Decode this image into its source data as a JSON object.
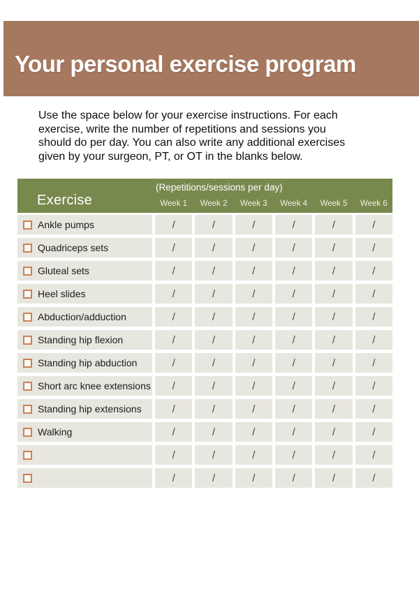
{
  "title": "Your personal exercise program",
  "instructions": {
    "lines": [
      "Use the space below for your exercise instructions. For each",
      "exercise, write the number of repetitions and sessions you",
      "should do per day. You can also write any additional exercises",
      "given by your surgeon, PT, or OT in the blanks below."
    ]
  },
  "table": {
    "exercise_header": "Exercise",
    "weeks_caption": "(Repetitions/sessions per day)",
    "week_labels": [
      "Week 1",
      "Week 2",
      "Week 3",
      "Week 4",
      "Week 5",
      "Week 6"
    ],
    "slash": "/",
    "rows": [
      {
        "label": "Ankle pumps"
      },
      {
        "label": "Quadriceps sets"
      },
      {
        "label": "Gluteal sets"
      },
      {
        "label": "Heel slides"
      },
      {
        "label": "Abduction/adduction"
      },
      {
        "label": "Standing hip flexion"
      },
      {
        "label": "Standing hip abduction"
      },
      {
        "label": "Short arc knee extensions"
      },
      {
        "label": "Standing hip extensions"
      },
      {
        "label": "Walking"
      },
      {
        "label": ""
      },
      {
        "label": ""
      }
    ]
  },
  "colors": {
    "band_brown": "#a6785f",
    "header_green": "#78894e",
    "row_bg": "#e7e6df",
    "checkbox_border": "#cd8054",
    "slash_color": "#474747"
  }
}
